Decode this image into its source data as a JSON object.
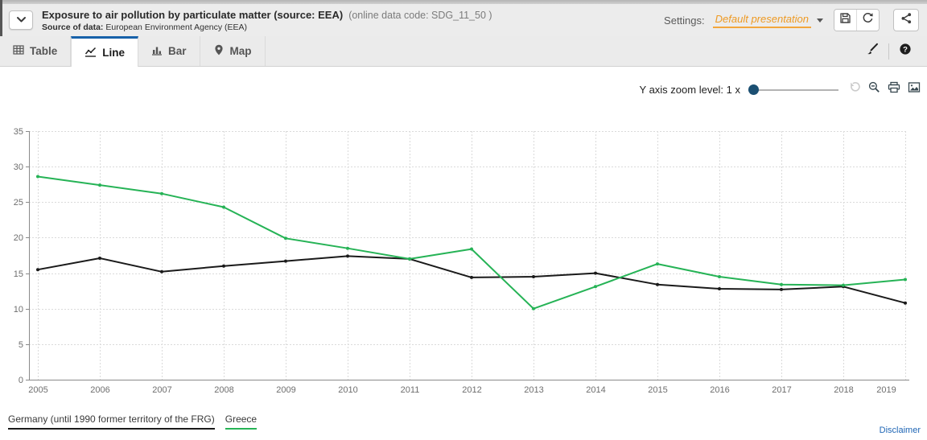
{
  "header": {
    "title": "Exposure to air pollution by particulate matter (source: EEA)",
    "online_code": "(online data code: SDG_11_50 )",
    "source_label": "Source of data:",
    "source_value": "European Environment Agency (EEA)",
    "settings_label": "Settings:",
    "settings_value": "Default presentation"
  },
  "tabs": [
    {
      "label": "Table",
      "icon": "table-icon",
      "active": false
    },
    {
      "label": "Line",
      "icon": "line-chart-icon",
      "active": true
    },
    {
      "label": "Bar",
      "icon": "bar-chart-icon",
      "active": false
    },
    {
      "label": "Map",
      "icon": "map-pin-icon",
      "active": false
    }
  ],
  "toolbar_icons": [
    "paintbrush-icon",
    "help-icon"
  ],
  "header_icons": [
    "chevron-down-icon",
    "save-icon",
    "refresh-icon",
    "share-icon"
  ],
  "zoom_control": {
    "label": "Y axis zoom level: 1 x",
    "value": 1,
    "icons": [
      "undo-icon",
      "zoom-out-icon",
      "print-icon",
      "image-icon"
    ]
  },
  "legend": [
    {
      "label": "Germany (until 1990 former territory of the FRG)",
      "color": "#1a1a1a"
    },
    {
      "label": "Greece",
      "color": "#26b356"
    }
  ],
  "footer": {
    "disclaimer": "Disclaimer"
  },
  "colors": {
    "accent_blue": "#1761a9",
    "settings_orange": "#ee9a24",
    "link_blue": "#1f66b5",
    "slider_thumb": "#1b4f72",
    "germany_line": "#1a1a1a",
    "greece_line": "#26b356"
  },
  "chart_data": {
    "type": "line",
    "x": [
      2005,
      2006,
      2007,
      2008,
      2009,
      2010,
      2011,
      2012,
      2013,
      2014,
      2015,
      2016,
      2017,
      2018,
      2019
    ],
    "series": [
      {
        "name": "Germany (until 1990 former territory of the FRG)",
        "color": "#1a1a1a",
        "values": [
          15.5,
          17.1,
          15.2,
          16.0,
          16.7,
          17.4,
          17.0,
          14.4,
          14.5,
          15.0,
          13.4,
          12.8,
          12.7,
          13.1,
          10.8
        ]
      },
      {
        "name": "Greece",
        "color": "#26b356",
        "values": [
          28.6,
          27.4,
          26.2,
          24.3,
          19.9,
          18.5,
          17.0,
          18.4,
          10.0,
          13.1,
          16.3,
          14.5,
          13.4,
          13.3,
          14.1
        ]
      }
    ],
    "ylim": [
      0,
      35
    ],
    "ytick_step": 5,
    "grid": true,
    "legend_position": "bottom-left",
    "title": "Exposure to air pollution by particulate matter (source: EEA)",
    "xlabel": "",
    "ylabel": ""
  }
}
